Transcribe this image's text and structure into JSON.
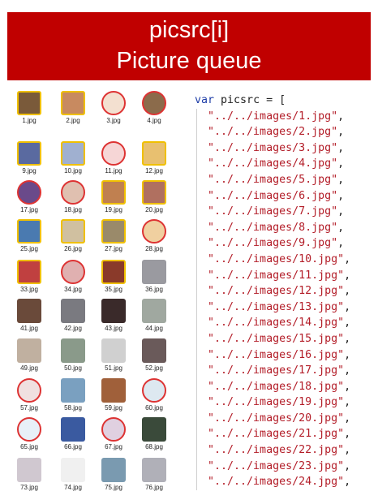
{
  "banner": {
    "line1": "picsrc[i]",
    "line2": "Picture queue"
  },
  "thumbnails": [
    {
      "label": "1.jpg",
      "color": "#7a5a3a",
      "style": "frame"
    },
    {
      "label": "2.jpg",
      "color": "#c88a60",
      "style": "frame"
    },
    {
      "label": "3.jpg",
      "color": "#f3e0d0",
      "style": "round"
    },
    {
      "label": "4.jpg",
      "color": "#8b6b4b",
      "style": "round"
    },
    {
      "label": "9.jpg",
      "color": "#5a6aa0",
      "style": "frame"
    },
    {
      "label": "10.jpg",
      "color": "#a0b0d0",
      "style": "frame"
    },
    {
      "label": "11.jpg",
      "color": "#f6d6d6",
      "style": "round"
    },
    {
      "label": "12.jpg",
      "color": "#e8c070",
      "style": "frame"
    },
    {
      "label": "17.jpg",
      "color": "#6a4a8a",
      "style": "round"
    },
    {
      "label": "18.jpg",
      "color": "#e0c0b0",
      "style": "round"
    },
    {
      "label": "19.jpg",
      "color": "#c08050",
      "style": "frame"
    },
    {
      "label": "20.jpg",
      "color": "#b07060",
      "style": "frame"
    },
    {
      "label": "25.jpg",
      "color": "#4a7ab0",
      "style": "frame"
    },
    {
      "label": "26.jpg",
      "color": "#d0c0a0",
      "style": "frame"
    },
    {
      "label": "27.jpg",
      "color": "#9a8a6a",
      "style": "frame"
    },
    {
      "label": "28.jpg",
      "color": "#f0d0a0",
      "style": "round"
    },
    {
      "label": "33.jpg",
      "color": "#c04040",
      "style": "frame"
    },
    {
      "label": "34.jpg",
      "color": "#e0b0b0",
      "style": "round"
    },
    {
      "label": "35.jpg",
      "color": "#8a3a2a",
      "style": "frame"
    },
    {
      "label": "36.jpg",
      "color": "#9a9aa0",
      "style": "plain"
    },
    {
      "label": "41.jpg",
      "color": "#6a4a3a",
      "style": "plain"
    },
    {
      "label": "42.jpg",
      "color": "#7a7a80",
      "style": "plain"
    },
    {
      "label": "43.jpg",
      "color": "#3a2a2a",
      "style": "plain"
    },
    {
      "label": "44.jpg",
      "color": "#a0a8a0",
      "style": "plain"
    },
    {
      "label": "49.jpg",
      "color": "#c0b0a0",
      "style": "plain"
    },
    {
      "label": "50.jpg",
      "color": "#8a9a8a",
      "style": "plain"
    },
    {
      "label": "51.jpg",
      "color": "#d0d0d0",
      "style": "plain"
    },
    {
      "label": "52.jpg",
      "color": "#6a5a5a",
      "style": "plain"
    },
    {
      "label": "57.jpg",
      "color": "#f0e0e0",
      "style": "round"
    },
    {
      "label": "58.jpg",
      "color": "#7aa0c0",
      "style": "plain"
    },
    {
      "label": "59.jpg",
      "color": "#a0603a",
      "style": "plain"
    },
    {
      "label": "60.jpg",
      "color": "#dde8f0",
      "style": "round"
    },
    {
      "label": "65.jpg",
      "color": "#e8f0f8",
      "style": "round"
    },
    {
      "label": "66.jpg",
      "color": "#3a5aa0",
      "style": "plain"
    },
    {
      "label": "67.jpg",
      "color": "#e0d0e0",
      "style": "round"
    },
    {
      "label": "68.jpg",
      "color": "#3a4a3a",
      "style": "plain"
    },
    {
      "label": "73.jpg",
      "color": "#d0c8d0",
      "style": "plain"
    },
    {
      "label": "74.jpg",
      "color": "#f0f0f0",
      "style": "plain"
    },
    {
      "label": "75.jpg",
      "color": "#7a9ab0",
      "style": "plain"
    },
    {
      "label": "76.jpg",
      "color": "#b0b0b8",
      "style": "plain"
    }
  ],
  "code": {
    "keyword": "var",
    "identifier": " picsrc = [",
    "entries": [
      "\"../../images/1.jpg\"",
      "\"../../images/2.jpg\"",
      "\"../../images/3.jpg\"",
      "\"../../images/4.jpg\"",
      "\"../../images/5.jpg\"",
      "\"../../images/6.jpg\"",
      "\"../../images/7.jpg\"",
      "\"../../images/8.jpg\"",
      "\"../../images/9.jpg\"",
      "\"../../images/10.jpg\"",
      "\"../../images/11.jpg\"",
      "\"../../images/12.jpg\"",
      "\"../../images/13.jpg\"",
      "\"../../images/14.jpg\"",
      "\"../../images/15.jpg\"",
      "\"../../images/16.jpg\"",
      "\"../../images/17.jpg\"",
      "\"../../images/18.jpg\"",
      "\"../../images/19.jpg\"",
      "\"../../images/20.jpg\"",
      "\"../../images/21.jpg\"",
      "\"../../images/22.jpg\"",
      "\"../../images/23.jpg\"",
      "\"../../images/24.jpg\""
    ],
    "separator": ","
  }
}
